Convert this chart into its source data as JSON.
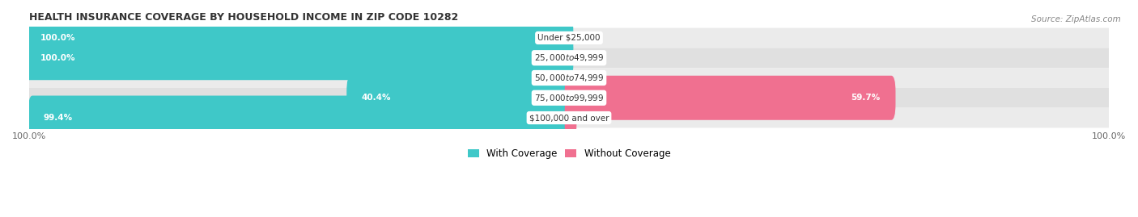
{
  "title": "HEALTH INSURANCE COVERAGE BY HOUSEHOLD INCOME IN ZIP CODE 10282",
  "source": "Source: ZipAtlas.com",
  "categories": [
    "Under $25,000",
    "$25,000 to $49,999",
    "$50,000 to $74,999",
    "$75,000 to $99,999",
    "$100,000 and over"
  ],
  "with_coverage": [
    100.0,
    100.0,
    0.0,
    40.4,
    99.4
  ],
  "without_coverage": [
    0.0,
    0.0,
    0.0,
    59.7,
    0.6
  ],
  "color_with": "#3fc8c8",
  "color_without": "#f07090",
  "bar_height": 0.62,
  "figsize": [
    14.06,
    2.69
  ],
  "dpi": 100,
  "legend_labels": [
    "With Coverage",
    "Without Coverage"
  ],
  "xlim_left": -100,
  "xlim_right": 100,
  "row_bg_colors": [
    "#ebebeb",
    "#e0e0e0",
    "#ebebeb",
    "#e0e0e0",
    "#ebebeb"
  ]
}
